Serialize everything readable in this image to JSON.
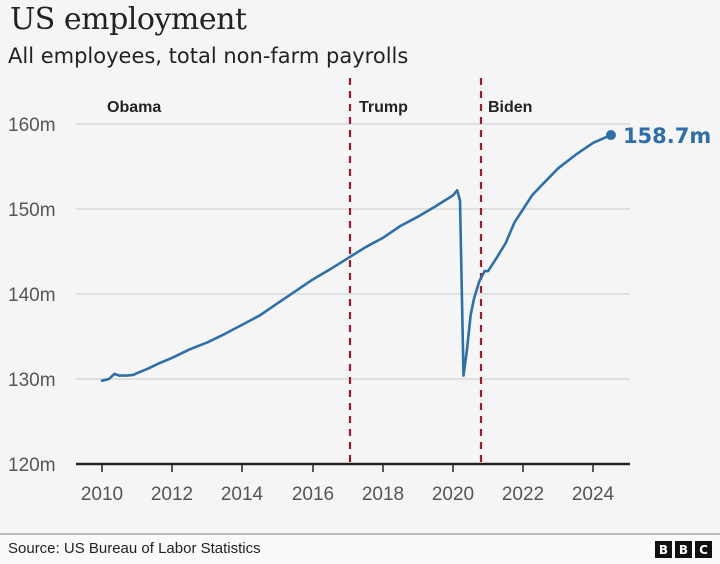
{
  "header": {
    "title": "US employment",
    "subtitle": "All employees, total non-farm payrolls"
  },
  "footer": {
    "source": "Source: US Bureau of Labor Statistics",
    "logo_letters": [
      "B",
      "B",
      "C"
    ]
  },
  "colors": {
    "line": "#2f6fa8",
    "divider": "#9b1c2c",
    "grid": "#d9d9d9",
    "axis": "#222222",
    "background": "#f5f5f5"
  },
  "chart_data": {
    "type": "line",
    "title": "US employment",
    "subtitle": "All employees, total non-farm payrolls",
    "xlabel": "",
    "ylabel": "",
    "ylim": [
      120,
      160
    ],
    "xlim": [
      2010,
      2025.3
    ],
    "y_ticks": [
      "120m",
      "130m",
      "140m",
      "150m",
      "160m"
    ],
    "x_ticks": [
      "2010",
      "2012",
      "2014",
      "2016",
      "2018",
      "2020",
      "2022",
      "2024"
    ],
    "grid": true,
    "legend": "none",
    "series": [
      {
        "name": "Total non-farm payrolls (millions)",
        "x": [
          2010.0,
          2010.2,
          2010.35,
          2010.5,
          2010.7,
          2010.9,
          2011.0,
          2011.3,
          2011.6,
          2012.0,
          2012.5,
          2013.0,
          2013.5,
          2014.0,
          2014.5,
          2015.0,
          2015.5,
          2016.0,
          2016.5,
          2017.0,
          2017.5,
          2018.0,
          2018.5,
          2019.0,
          2019.5,
          2020.0,
          2020.12,
          2020.2,
          2020.3,
          2020.4,
          2020.5,
          2020.6,
          2020.75,
          2020.9,
          2021.0,
          2021.25,
          2021.5,
          2021.75,
          2022.0,
          2022.25,
          2022.5,
          2023.0,
          2023.5,
          2024.0,
          2024.5
        ],
        "values": [
          129.8,
          130.0,
          130.6,
          130.4,
          130.4,
          130.5,
          130.7,
          131.2,
          131.8,
          132.5,
          133.5,
          134.3,
          135.3,
          136.4,
          137.5,
          138.9,
          140.3,
          141.7,
          142.9,
          144.2,
          145.5,
          146.6,
          148.0,
          149.1,
          150.3,
          151.6,
          152.2,
          151.0,
          130.4,
          133.5,
          137.5,
          139.5,
          141.5,
          142.7,
          142.7,
          144.3,
          146.0,
          148.4,
          150.0,
          151.6,
          152.7,
          154.8,
          156.4,
          157.8,
          158.7
        ]
      }
    ],
    "annotations": [
      {
        "type": "vline",
        "x": 2017.05,
        "style": "dashed",
        "color": "#9b1c2c"
      },
      {
        "type": "vline",
        "x": 2020.97,
        "style": "dashed",
        "color": "#9b1c2c"
      },
      {
        "type": "region_label",
        "text": "Obama"
      },
      {
        "type": "region_label",
        "text": "Trump"
      },
      {
        "type": "region_label",
        "text": "Biden"
      },
      {
        "type": "end_label",
        "x": 2024.5,
        "y": 158.7,
        "text": "158.7m"
      }
    ]
  },
  "labels": {
    "y": [
      "120m",
      "130m",
      "140m",
      "150m",
      "160m"
    ],
    "x": [
      "2010",
      "2012",
      "2014",
      "2016",
      "2018",
      "2020",
      "2022",
      "2024"
    ],
    "regions": [
      "Obama",
      "Trump",
      "Biden"
    ],
    "end_value": "158.7m"
  }
}
